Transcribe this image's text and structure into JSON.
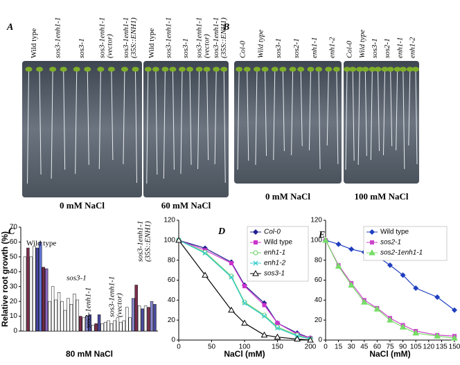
{
  "panels": {
    "A": {
      "letter": "A",
      "plates": [
        {
          "labels": [
            [
              "Wild type"
            ],
            [
              "sos3-1enh1-1"
            ],
            [
              "sos3-1"
            ],
            [
              "sos3-1enh1-1",
              "(vector)"
            ],
            [
              "sos3-1enh1-1",
              "(35S::ENH1)"
            ]
          ],
          "caption": "0 mM NaCl"
        },
        {
          "labels": [
            [
              "Wild type"
            ],
            [
              "sos3-1enh1-1"
            ],
            [
              "sos3-1"
            ],
            [
              "sos3-1enh1-1",
              "(vector)"
            ],
            [
              "sos3-1enh1-1",
              "(35S::ENH1)"
            ]
          ],
          "caption": "60  mM NaCl"
        }
      ]
    },
    "B": {
      "letter": "B",
      "plates": [
        {
          "labels": [
            [
              "Col-0"
            ],
            [
              "Wild type"
            ],
            [
              "sos3-1"
            ],
            [
              "sos2-1"
            ],
            [
              "enh1-1"
            ],
            [
              "enh1-2"
            ]
          ],
          "caption": "0 mM NaCl"
        },
        {
          "labels": [
            [
              "Col-0"
            ],
            [
              "Wild type"
            ],
            [
              "sos3-1"
            ],
            [
              "sos2-1"
            ],
            [
              "enh1-1"
            ],
            [
              "enh1-2"
            ]
          ],
          "caption": "100 mM NaCl"
        }
      ]
    }
  },
  "chart_data": [
    {
      "type": "bar",
      "letter": "C",
      "ylabel": "Relative root growth (%)",
      "xlabel": "80  mM NaCl",
      "ylim": [
        0,
        70
      ],
      "yticks": [
        0,
        10,
        20,
        30,
        40,
        50,
        60,
        70
      ],
      "values": [
        50,
        56,
        50,
        57,
        56,
        60,
        43,
        42,
        20,
        30,
        21,
        26,
        20,
        14,
        22,
        18,
        25,
        21,
        10,
        9,
        10,
        11,
        4,
        5,
        11,
        5,
        6,
        7,
        5,
        7,
        9,
        6,
        7,
        16,
        9,
        22,
        31,
        17,
        15,
        17,
        16,
        20,
        18
      ],
      "colors": [
        "#ffffff",
        "#7b2c4b",
        "#ffffff",
        "#ffffff",
        "#4a4aa0",
        "#5f73d6",
        "#6f2a45",
        "#8a6ac0",
        "#ffffff",
        "#ffffff",
        "#ffffff",
        "#ffffff",
        "#ffffff",
        "#ffffff",
        "#ffffff",
        "#ffffff",
        "#ffffff",
        "#ffffff",
        "#7b2c4b",
        "#ffffff",
        "#8a8ad0",
        "#4a4aa0",
        "#ffffff",
        "#7b2c4b",
        "#4a4aa0",
        "#ffffff",
        "#ffffff",
        "#ffffff",
        "#ffffff",
        "#ffffff",
        "#ffffff",
        "#ffffff",
        "#ffffff",
        "#ffffff",
        "#ffffff",
        "#8a8ad0",
        "#7b2c4b",
        "#ffffff",
        "#4a4aa0",
        "#ffffff",
        "#7b2c4b",
        "#8a8ad0",
        "#4a4aa0"
      ],
      "annotations": [
        [
          "Wild type"
        ],
        [
          "sos3-1"
        ],
        [
          "sos3-1enh1-1"
        ],
        [
          "sos3-1enh1-1",
          "(vector)"
        ],
        [
          "sos3-1enh1-1",
          "(35S::ENH1)"
        ]
      ]
    },
    {
      "type": "line",
      "letter": "D",
      "xlabel": "NaCl (mM)",
      "xlim": [
        0,
        200
      ],
      "xticks": [
        0,
        50,
        100,
        150,
        200
      ],
      "ylim": [
        0,
        120
      ],
      "yticks": [
        0,
        20,
        40,
        60,
        80,
        100,
        120
      ],
      "x": [
        0,
        40,
        80,
        100,
        130,
        150,
        180,
        200
      ],
      "series": [
        {
          "name": "Col-0",
          "color": "#1f1f8f",
          "marker": "diamond",
          "values": [
            100,
            92,
            78,
            55,
            37,
            17,
            7,
            2
          ]
        },
        {
          "name": "Wild type",
          "color": "#cc33cc",
          "marker": "square",
          "values": [
            100,
            90,
            77,
            54,
            35,
            17,
            6,
            2
          ]
        },
        {
          "name": "enh1-1",
          "color": "#66cc66",
          "marker": "circle",
          "values": [
            100,
            88,
            64,
            38,
            25,
            13,
            5,
            1
          ]
        },
        {
          "name": "enh1-2",
          "color": "#33cccc",
          "marker": "x",
          "values": [
            100,
            87,
            63,
            37,
            24,
            12,
            4,
            1
          ]
        },
        {
          "name": "sos3-1",
          "color": "#000000",
          "marker": "triangle",
          "values": [
            100,
            65,
            30,
            17,
            5,
            3,
            1,
            0
          ]
        }
      ]
    },
    {
      "type": "line",
      "letter": "E",
      "xlabel": "NaCl (mM)",
      "xlim": [
        0,
        150
      ],
      "xticks": [
        0,
        15,
        30,
        45,
        60,
        75,
        90,
        105,
        120,
        135,
        150
      ],
      "ylim": [
        0,
        120
      ],
      "yticks": [
        0,
        20,
        40,
        60,
        80,
        100,
        120
      ],
      "x": [
        0,
        15,
        30,
        45,
        60,
        75,
        90,
        105,
        130,
        150
      ],
      "series": [
        {
          "name": "Wild type",
          "color": "#1f3fbf",
          "marker": "diamond",
          "values": [
            100,
            96,
            91,
            88,
            84,
            75,
            65,
            52,
            43,
            30
          ]
        },
        {
          "name": "sos2-1",
          "color": "#cc44cc",
          "marker": "square",
          "values": [
            100,
            75,
            57,
            40,
            32,
            22,
            15,
            9,
            5,
            4
          ]
        },
        {
          "name": "sos2-1enh1-1",
          "color": "#77dd66",
          "marker": "triangle",
          "values": [
            100,
            74,
            55,
            38,
            31,
            20,
            13,
            7,
            4,
            2
          ]
        }
      ]
    }
  ]
}
